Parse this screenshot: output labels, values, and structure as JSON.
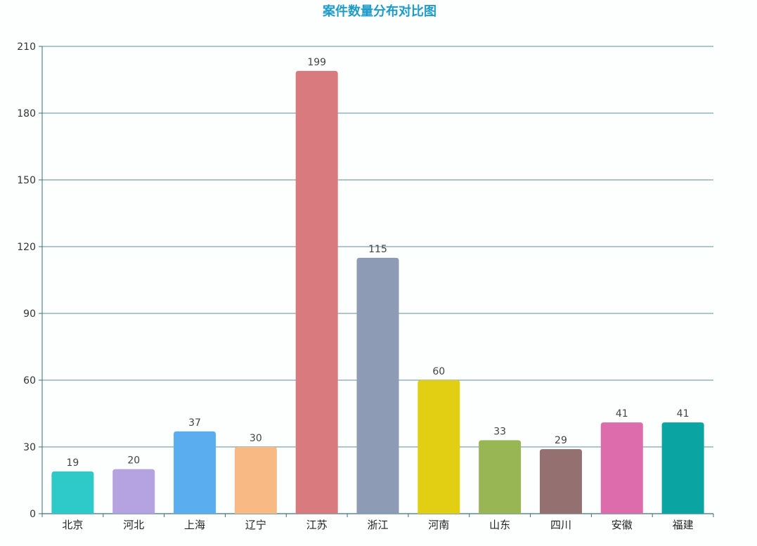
{
  "colors": {
    "title": "#1e9bc9",
    "grid": "#5c8e9a",
    "axis": "#3a6f7c",
    "bars": [
      "#2ec9c9",
      "#b5a2e0",
      "#5aaeef",
      "#f9b985",
      "#d97b7e",
      "#8e9bb5",
      "#e2cf14",
      "#98b654",
      "#957070",
      "#dd6cad",
      "#0aa5a3"
    ]
  },
  "chart_data": {
    "type": "bar",
    "title": "案件数量分布对比图",
    "xlabel": "",
    "ylabel": "",
    "categories": [
      "北京",
      "河北",
      "上海",
      "辽宁",
      "江苏",
      "浙江",
      "河南",
      "山东",
      "四川",
      "安徽",
      "福建"
    ],
    "values": [
      19,
      20,
      37,
      30,
      199,
      115,
      60,
      33,
      29,
      41,
      41
    ],
    "data_labels": [
      "19",
      "20",
      "37",
      "30",
      "199",
      "115",
      "60",
      "33",
      "29",
      "41",
      "41"
    ],
    "ylim": [
      0,
      210
    ],
    "yticks": [
      0,
      30,
      60,
      90,
      120,
      150,
      180,
      210
    ],
    "ytick_labels": [
      "0",
      "30",
      "60",
      "90",
      "120",
      "150",
      "180",
      "210"
    ],
    "grid": true,
    "legend": "none"
  }
}
